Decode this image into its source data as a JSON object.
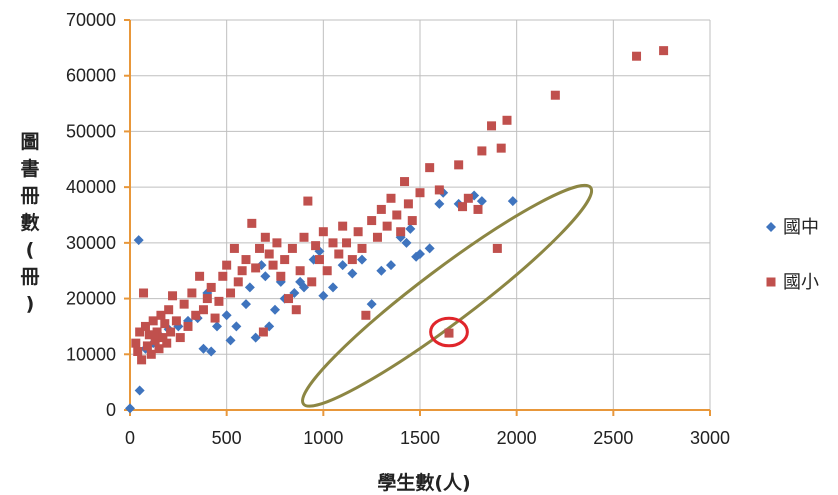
{
  "chart_data": {
    "type": "scatter",
    "title": "",
    "xlabel": "學生數(人)",
    "ylabel": "圖書冊數(冊)",
    "xlim": [
      0,
      3000
    ],
    "ylim": [
      0,
      70000
    ],
    "x_ticks": [
      0,
      500,
      1000,
      1500,
      2000,
      2500,
      3000
    ],
    "y_ticks": [
      0,
      10000,
      20000,
      30000,
      40000,
      50000,
      60000,
      70000
    ],
    "x_tick_labels": [
      "0",
      "500",
      "1000",
      "1500",
      "2000",
      "2500",
      "3000"
    ],
    "y_tick_labels": [
      "0",
      "10000",
      "20000",
      "30000",
      "40000",
      "50000",
      "60000",
      "70000"
    ],
    "grid": true,
    "legend_position": "right",
    "colors": {
      "axis": "#E8973A",
      "grid": "#BFBFBF",
      "highlight_ellipse": "#8C8643",
      "highlight_circle": "#E0252B"
    },
    "series": [
      {
        "name": "國中",
        "marker": "diamond",
        "color": "#3F74BE",
        "points": [
          [
            0,
            300
          ],
          [
            50,
            3500
          ],
          [
            45,
            30500
          ],
          [
            80,
            11000
          ],
          [
            120,
            12000
          ],
          [
            150,
            13500
          ],
          [
            200,
            14500
          ],
          [
            250,
            15000
          ],
          [
            300,
            16000
          ],
          [
            350,
            16500
          ],
          [
            380,
            11000
          ],
          [
            400,
            21000
          ],
          [
            420,
            10500
          ],
          [
            450,
            15000
          ],
          [
            500,
            17000
          ],
          [
            520,
            12500
          ],
          [
            550,
            15000
          ],
          [
            600,
            19000
          ],
          [
            620,
            22000
          ],
          [
            650,
            13000
          ],
          [
            680,
            26000
          ],
          [
            700,
            24000
          ],
          [
            720,
            15000
          ],
          [
            750,
            18000
          ],
          [
            780,
            23000
          ],
          [
            800,
            20000
          ],
          [
            850,
            21000
          ],
          [
            880,
            23000
          ],
          [
            900,
            22000
          ],
          [
            950,
            27000
          ],
          [
            980,
            28500
          ],
          [
            1000,
            20500
          ],
          [
            1050,
            22000
          ],
          [
            1100,
            26000
          ],
          [
            1150,
            24500
          ],
          [
            1200,
            27000
          ],
          [
            1250,
            19000
          ],
          [
            1300,
            25000
          ],
          [
            1350,
            26000
          ],
          [
            1400,
            31000
          ],
          [
            1430,
            30000
          ],
          [
            1450,
            32500
          ],
          [
            1480,
            27500
          ],
          [
            1500,
            28000
          ],
          [
            1550,
            29000
          ],
          [
            1600,
            37000
          ],
          [
            1620,
            39000
          ],
          [
            1700,
            37000
          ],
          [
            1780,
            38500
          ],
          [
            1820,
            37500
          ],
          [
            1980,
            37500
          ]
        ]
      },
      {
        "name": "國小",
        "marker": "square",
        "color": "#C0504D",
        "points": [
          [
            30,
            12000
          ],
          [
            40,
            10500
          ],
          [
            50,
            14000
          ],
          [
            60,
            9000
          ],
          [
            70,
            21000
          ],
          [
            80,
            15000
          ],
          [
            90,
            11500
          ],
          [
            100,
            13500
          ],
          [
            110,
            10000
          ],
          [
            120,
            16000
          ],
          [
            130,
            12500
          ],
          [
            140,
            14000
          ],
          [
            150,
            11000
          ],
          [
            160,
            17000
          ],
          [
            170,
            13000
          ],
          [
            180,
            15500
          ],
          [
            190,
            12000
          ],
          [
            200,
            18000
          ],
          [
            210,
            14000
          ],
          [
            220,
            20500
          ],
          [
            240,
            16000
          ],
          [
            260,
            13000
          ],
          [
            280,
            19000
          ],
          [
            300,
            15000
          ],
          [
            320,
            21000
          ],
          [
            340,
            17000
          ],
          [
            360,
            24000
          ],
          [
            380,
            18000
          ],
          [
            400,
            20000
          ],
          [
            420,
            22000
          ],
          [
            440,
            16500
          ],
          [
            460,
            19500
          ],
          [
            480,
            24000
          ],
          [
            500,
            26000
          ],
          [
            520,
            21000
          ],
          [
            540,
            29000
          ],
          [
            560,
            23000
          ],
          [
            580,
            25000
          ],
          [
            600,
            27000
          ],
          [
            630,
            33500
          ],
          [
            650,
            25500
          ],
          [
            670,
            29000
          ],
          [
            690,
            14000
          ],
          [
            700,
            31000
          ],
          [
            720,
            28000
          ],
          [
            740,
            26000
          ],
          [
            760,
            30000
          ],
          [
            780,
            24000
          ],
          [
            800,
            27000
          ],
          [
            820,
            20000
          ],
          [
            840,
            29000
          ],
          [
            860,
            18000
          ],
          [
            880,
            25000
          ],
          [
            900,
            31000
          ],
          [
            920,
            37500
          ],
          [
            940,
            23000
          ],
          [
            960,
            29500
          ],
          [
            980,
            27000
          ],
          [
            1000,
            32000
          ],
          [
            1020,
            25000
          ],
          [
            1050,
            30000
          ],
          [
            1080,
            28000
          ],
          [
            1100,
            33000
          ],
          [
            1120,
            30000
          ],
          [
            1150,
            27000
          ],
          [
            1180,
            32000
          ],
          [
            1200,
            29000
          ],
          [
            1220,
            17000
          ],
          [
            1250,
            34000
          ],
          [
            1280,
            31000
          ],
          [
            1300,
            36000
          ],
          [
            1330,
            33000
          ],
          [
            1350,
            38000
          ],
          [
            1380,
            35000
          ],
          [
            1400,
            32000
          ],
          [
            1420,
            41000
          ],
          [
            1440,
            37000
          ],
          [
            1460,
            34000
          ],
          [
            1500,
            39000
          ],
          [
            1550,
            43500
          ],
          [
            1600,
            39500
          ],
          [
            1650,
            13800
          ],
          [
            1700,
            44000
          ],
          [
            1720,
            36500
          ],
          [
            1750,
            38000
          ],
          [
            1800,
            36000
          ],
          [
            1820,
            46500
          ],
          [
            1870,
            51000
          ],
          [
            1900,
            29000
          ],
          [
            1920,
            47000
          ],
          [
            1950,
            52000
          ],
          [
            2200,
            56500
          ],
          [
            2620,
            63500
          ],
          [
            2760,
            64500
          ]
        ]
      }
    ],
    "annotations": [
      {
        "shape": "ellipse",
        "color": "#8C8643",
        "cx": 1640,
        "cy": 20500,
        "rx_data": 600,
        "ry_data": 8800,
        "rotation_deg": -37
      },
      {
        "shape": "circle",
        "color": "#E0252B",
        "cx": 1650,
        "cy": 14000,
        "r_data": 95
      }
    ]
  }
}
